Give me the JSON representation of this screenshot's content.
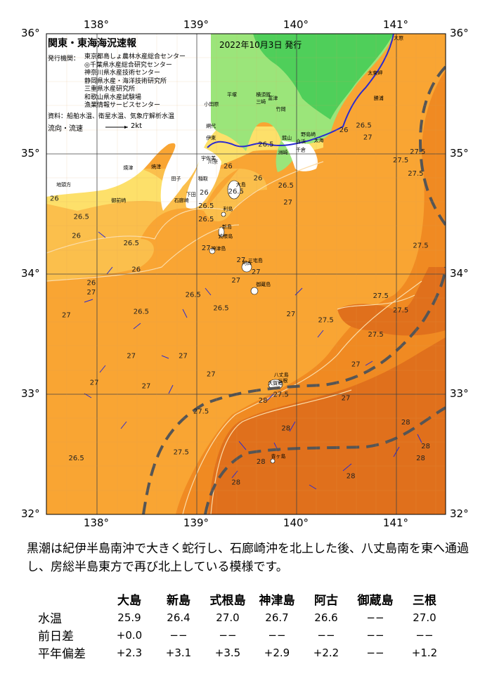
{
  "map": {
    "title": "関東・東海海況速報",
    "issue_date": "2022年10月3日 発行",
    "issuers_label": "発行機関：",
    "issuers": [
      "東京都島しょ農林水産総合センター",
      "◎千葉県水産総合研究センター",
      "神奈川県水産技術センター",
      "静岡県水産・海洋技術研究所",
      "三重県水産研究所",
      "和歌山県水産試験場",
      "漁業情報サービスセンター"
    ],
    "data_source": "資料：船舶水温、衛星水温、気象庁解析水温",
    "flow_legend": "流向・流速",
    "flow_scale": "2kt",
    "lon_labels": [
      "138°",
      "139°",
      "140°",
      "141°"
    ],
    "lon_values": [
      138,
      139,
      140,
      141
    ],
    "lat_labels": [
      "36°",
      "35°",
      "34°",
      "33°",
      "32°"
    ],
    "lat_values": [
      36,
      35,
      34,
      33,
      32
    ],
    "extent": {
      "lon_min": 137.5,
      "lon_max": 141.5,
      "lat_min": 32,
      "lat_max": 36
    },
    "colors": {
      "temp_25": "#f5f0a0",
      "temp_26": "#fde06a",
      "temp_26_5": "#fbbf4c",
      "temp_27": "#f9a533",
      "temp_27_5": "#f08a22",
      "temp_28": "#e0701c",
      "land_low": "#9be57a",
      "land_high": "#4fcf5a",
      "kuroshio_axis": "#555555",
      "current_vectors": "#2a2ad0"
    },
    "isotherm_labels": [
      {
        "text": "26.5",
        "lon": 140.68,
        "lat": 35.22
      },
      {
        "text": "26",
        "lon": 140.48,
        "lat": 35.18
      },
      {
        "text": "27.5",
        "lon": 141.22,
        "lat": 35.0
      },
      {
        "text": "27.5",
        "lon": 141.05,
        "lat": 34.93
      },
      {
        "text": "27.5",
        "lon": 141.2,
        "lat": 34.82
      },
      {
        "text": "27",
        "lon": 140.72,
        "lat": 35.12
      },
      {
        "text": "26.5",
        "lon": 139.7,
        "lat": 35.06
      },
      {
        "text": "26",
        "lon": 139.32,
        "lat": 34.88
      },
      {
        "text": "26",
        "lon": 139.62,
        "lat": 34.78
      },
      {
        "text": "26.5",
        "lon": 139.9,
        "lat": 34.72
      },
      {
        "text": "26.5",
        "lon": 139.4,
        "lat": 34.67
      },
      {
        "text": "27",
        "lon": 139.92,
        "lat": 34.58
      },
      {
        "text": "26.5",
        "lon": 139.1,
        "lat": 34.55
      },
      {
        "text": "26",
        "lon": 139.08,
        "lat": 34.66
      },
      {
        "text": "26.5",
        "lon": 139.1,
        "lat": 34.44
      },
      {
        "text": "26.5",
        "lon": 137.85,
        "lat": 34.46
      },
      {
        "text": "26",
        "lon": 137.58,
        "lat": 34.61
      },
      {
        "text": "26",
        "lon": 137.8,
        "lat": 34.3
      },
      {
        "text": "26.5",
        "lon": 138.35,
        "lat": 34.24
      },
      {
        "text": "26",
        "lon": 138.4,
        "lat": 34.02
      },
      {
        "text": "27",
        "lon": 139.1,
        "lat": 34.2
      },
      {
        "text": "27",
        "lon": 139.45,
        "lat": 34.1
      },
      {
        "text": "27",
        "lon": 139.6,
        "lat": 34.0
      },
      {
        "text": "27",
        "lon": 139.4,
        "lat": 33.93
      },
      {
        "text": "26",
        "lon": 137.95,
        "lat": 33.91
      },
      {
        "text": "27",
        "lon": 137.95,
        "lat": 33.83
      },
      {
        "text": "27",
        "lon": 137.7,
        "lat": 33.64
      },
      {
        "text": "26.5",
        "lon": 138.97,
        "lat": 33.81
      },
      {
        "text": "26.5",
        "lon": 139.25,
        "lat": 33.7
      },
      {
        "text": "26.5",
        "lon": 138.45,
        "lat": 33.67
      },
      {
        "text": "27",
        "lon": 139.95,
        "lat": 33.65
      },
      {
        "text": "27.5",
        "lon": 140.3,
        "lat": 33.6
      },
      {
        "text": "27.5",
        "lon": 140.85,
        "lat": 33.8
      },
      {
        "text": "27.5",
        "lon": 141.05,
        "lat": 33.68
      },
      {
        "text": "27.5",
        "lon": 141.25,
        "lat": 34.22
      },
      {
        "text": "27.5",
        "lon": 140.8,
        "lat": 33.48
      },
      {
        "text": "27",
        "lon": 138.35,
        "lat": 33.3
      },
      {
        "text": "27",
        "lon": 137.98,
        "lat": 33.08
      },
      {
        "text": "27",
        "lon": 138.5,
        "lat": 33.05
      },
      {
        "text": "27",
        "lon": 138.87,
        "lat": 33.3
      },
      {
        "text": "27",
        "lon": 139.15,
        "lat": 33.15
      },
      {
        "text": "27",
        "lon": 140.6,
        "lat": 33.23
      },
      {
        "text": "27.5",
        "lon": 139.85,
        "lat": 32.98
      },
      {
        "text": "27.5",
        "lon": 139.05,
        "lat": 32.84
      },
      {
        "text": "27.5",
        "lon": 138.85,
        "lat": 32.5
      },
      {
        "text": "27",
        "lon": 140.5,
        "lat": 32.95
      },
      {
        "text": "28",
        "lon": 139.67,
        "lat": 32.93
      },
      {
        "text": "28",
        "lon": 139.9,
        "lat": 32.7
      },
      {
        "text": "28",
        "lon": 139.65,
        "lat": 32.42
      },
      {
        "text": "28",
        "lon": 139.4,
        "lat": 32.25
      },
      {
        "text": "28",
        "lon": 140.55,
        "lat": 32.3
      },
      {
        "text": "28",
        "lon": 141.25,
        "lat": 32.45
      },
      {
        "text": "28",
        "lon": 141.1,
        "lat": 32.75
      },
      {
        "text": "28",
        "lon": 141.3,
        "lat": 32.55
      },
      {
        "text": "26.5",
        "lon": 137.8,
        "lat": 32.45
      }
    ],
    "place_labels": [
      {
        "text": "大原",
        "lon": 140.98,
        "lat": 35.95
      },
      {
        "text": "太東岬",
        "lon": 140.72,
        "lat": 35.66
      },
      {
        "text": "勝浦",
        "lon": 140.78,
        "lat": 35.45
      },
      {
        "text": "野島崎",
        "lon": 140.05,
        "lat": 35.15
      },
      {
        "text": "平塚",
        "lon": 139.31,
        "lat": 35.48
      },
      {
        "text": "横須賀",
        "lon": 139.6,
        "lat": 35.48
      },
      {
        "text": "三崎",
        "lon": 139.6,
        "lat": 35.42
      },
      {
        "text": "富津",
        "lon": 139.72,
        "lat": 35.45
      },
      {
        "text": "竹岡",
        "lon": 139.8,
        "lat": 35.36
      },
      {
        "text": "小田原",
        "lon": 139.08,
        "lat": 35.4
      },
      {
        "text": "網代",
        "lon": 139.1,
        "lat": 35.22
      },
      {
        "text": "伊東",
        "lon": 139.1,
        "lat": 35.12
      },
      {
        "text": "白浜",
        "lon": 140.0,
        "lat": 35.09
      },
      {
        "text": "館山",
        "lon": 139.86,
        "lat": 35.12
      },
      {
        "text": "洲崎",
        "lon": 139.82,
        "lat": 35.0
      },
      {
        "text": "千倉",
        "lon": 140.0,
        "lat": 35.02
      },
      {
        "text": "太海",
        "lon": 140.18,
        "lat": 35.1
      },
      {
        "text": "大島",
        "lon": 139.4,
        "lat": 34.73
      },
      {
        "text": "利島",
        "lon": 139.27,
        "lat": 34.53
      },
      {
        "text": "新島",
        "lon": 139.26,
        "lat": 34.38
      },
      {
        "text": "式根島",
        "lon": 139.22,
        "lat": 34.3
      },
      {
        "text": "神津島",
        "lon": 139.15,
        "lat": 34.2
      },
      {
        "text": "三宅島",
        "lon": 139.52,
        "lat": 34.1
      },
      {
        "text": "御蔵島",
        "lon": 139.6,
        "lat": 33.9
      },
      {
        "text": "阿古",
        "lon": 139.46,
        "lat": 34.08
      },
      {
        "text": "八丈島",
        "lon": 139.78,
        "lat": 33.15
      },
      {
        "text": "三根",
        "lon": 139.82,
        "lat": 33.1
      },
      {
        "text": "大賀郷",
        "lon": 139.72,
        "lat": 33.08
      },
      {
        "text": "青ヶ島",
        "lon": 139.75,
        "lat": 32.47
      },
      {
        "text": "御前崎",
        "lon": 138.15,
        "lat": 34.6
      },
      {
        "text": "地頭方",
        "lon": 137.6,
        "lat": 34.73
      },
      {
        "text": "焼津",
        "lon": 138.27,
        "lat": 34.87
      },
      {
        "text": "田子",
        "lon": 138.75,
        "lat": 34.78
      },
      {
        "text": "石廊崎",
        "lon": 138.78,
        "lat": 34.6
      },
      {
        "text": "下田",
        "lon": 138.9,
        "lat": 34.65
      },
      {
        "text": "稲取",
        "lon": 139.02,
        "lat": 34.78
      },
      {
        "text": "宇佐美",
        "lon": 139.05,
        "lat": 34.95
      },
      {
        "text": "川奈",
        "lon": 139.12,
        "lat": 34.92
      },
      {
        "text": "焼津",
        "lon": 138.55,
        "lat": 34.88
      }
    ]
  },
  "description": "黒潮は紀伊半島南沖で大きく蛇行し、石廊崎沖を北上した後、八丈島南を東へ通過し、房総半島東方で再び北上している模様です。",
  "stats": {
    "columns": [
      "大島",
      "新島",
      "式根島",
      "神津島",
      "阿古",
      "御蔵島",
      "三根"
    ],
    "rows": [
      {
        "label": "水温",
        "values": [
          "25.9",
          "26.4",
          "27.0",
          "26.7",
          "26.6",
          "−−",
          "27.0"
        ]
      },
      {
        "label": "前日差",
        "values": [
          "+0.0",
          "−−",
          "−−",
          "−−",
          "−−",
          "−−",
          "−−"
        ]
      },
      {
        "label": "平年偏差",
        "values": [
          "+2.3",
          "+3.1",
          "+3.5",
          "+2.9",
          "+2.2",
          "−−",
          "+1.2"
        ]
      }
    ]
  }
}
